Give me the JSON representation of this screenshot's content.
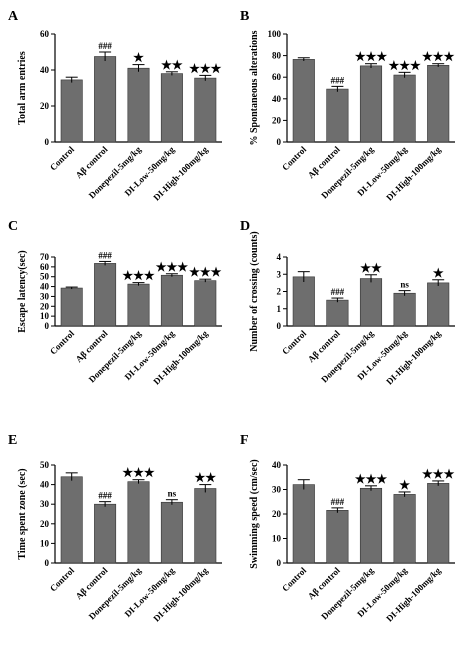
{
  "categories": [
    "Control",
    "Aβ control",
    "Donepezil-5mg/kg",
    "DI-Low-50mg/kg",
    "DI-High-100mg/kg"
  ],
  "colors": {
    "bar": "#6e6e6e",
    "axis": "#000000",
    "text": "#000000"
  },
  "chart_data": [
    {
      "type": "bar",
      "panel": "A",
      "title": "",
      "xlabel": "",
      "ylabel": "Total arm entries",
      "ylim": [
        0,
        60
      ],
      "yticks": [
        0,
        20,
        40,
        60
      ],
      "values": [
        34.5,
        47.5,
        41,
        38,
        35.5
      ],
      "errors": [
        1.5,
        2.5,
        2,
        1,
        1.5
      ],
      "significance": [
        "",
        "###",
        "★",
        "★★",
        "★★★"
      ]
    },
    {
      "type": "bar",
      "panel": "B",
      "title": "",
      "xlabel": "",
      "ylabel": "% Spontaneous alterations",
      "ylim": [
        0,
        100
      ],
      "yticks": [
        0,
        20,
        40,
        60,
        80,
        100
      ],
      "values": [
        76.5,
        49,
        70.5,
        62,
        71
      ],
      "errors": [
        1.5,
        2.5,
        2,
        2.5,
        1.5
      ],
      "significance": [
        "",
        "###",
        "★★★",
        "★★★",
        "★★★"
      ]
    },
    {
      "type": "bar",
      "panel": "C",
      "title": "",
      "xlabel": "",
      "ylabel": "Escape latency(sec)",
      "ylim": [
        0,
        70
      ],
      "yticks": [
        0,
        10,
        20,
        30,
        40,
        50,
        60,
        70
      ],
      "values": [
        38.5,
        63.5,
        42.5,
        51.5,
        46
      ],
      "errors": [
        1,
        2,
        1.5,
        1.5,
        1.5
      ],
      "significance": [
        "",
        "###",
        "★★★",
        "★★★",
        "★★★"
      ]
    },
    {
      "type": "bar",
      "panel": "D",
      "title": "",
      "xlabel": "",
      "ylabel": "Number of crossing (counts)",
      "ylim": [
        0,
        4
      ],
      "yticks": [
        0,
        1,
        2,
        3,
        4
      ],
      "values": [
        2.85,
        1.5,
        2.75,
        1.9,
        2.5
      ],
      "errors": [
        0.3,
        0.12,
        0.22,
        0.15,
        0.18
      ],
      "significance": [
        "",
        "###",
        "★★",
        "ns",
        "★"
      ]
    },
    {
      "type": "bar",
      "panel": "E",
      "title": "",
      "xlabel": "",
      "ylabel": "Time spent zone (sec)",
      "ylim": [
        0,
        50
      ],
      "yticks": [
        0,
        10,
        20,
        30,
        40,
        50
      ],
      "values": [
        44,
        30,
        41.5,
        31,
        38
      ],
      "errors": [
        2,
        1.3,
        1,
        1.3,
        2
      ],
      "significance": [
        "",
        "###",
        "★★★",
        "ns",
        "★★"
      ]
    },
    {
      "type": "bar",
      "panel": "F",
      "title": "",
      "xlabel": "",
      "ylabel": "Swimming speed (cm/sec)",
      "ylim": [
        0,
        40
      ],
      "yticks": [
        0,
        10,
        20,
        30,
        40
      ],
      "values": [
        32,
        21.5,
        30.5,
        28,
        32.5
      ],
      "errors": [
        2,
        1,
        1,
        1,
        1
      ],
      "significance": [
        "",
        "###",
        "★★★",
        "★",
        "★★★"
      ]
    }
  ]
}
